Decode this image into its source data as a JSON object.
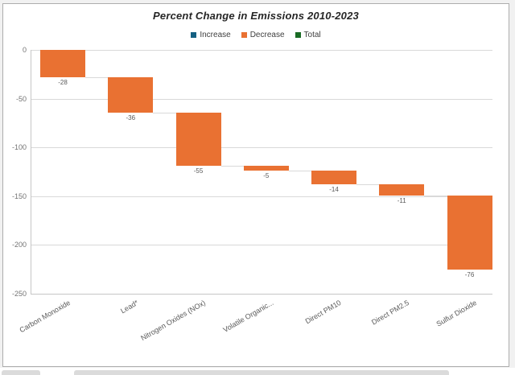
{
  "chart_data": {
    "type": "bar",
    "subtype": "waterfall",
    "title": "Percent Change in Emissions 2010-2023",
    "categories": [
      "Carbon Monoxide",
      "Lead*",
      "Nitrogen Oxides (NOx)",
      "Volatile Organic...",
      "Direct PM10",
      "Direct PM2.5",
      "Sulfur Dioxide"
    ],
    "values": [
      -28,
      -36,
      -55,
      -5,
      -14,
      -11,
      -76
    ],
    "data_labels": [
      "-28",
      "-36",
      "-55",
      "-5",
      "-14",
      "-11",
      "-76"
    ],
    "bar_color": "#E97132",
    "legend": [
      {
        "label": "Increase",
        "color": "#156082"
      },
      {
        "label": "Decrease",
        "color": "#E97132"
      },
      {
        "label": "Total",
        "color": "#196B24"
      }
    ],
    "legend_position": "top",
    "y_tick_labels": [
      "0",
      "-50",
      "-100",
      "-150",
      "-200",
      "-250"
    ],
    "y_ticks": [
      0,
      -50,
      -100,
      -150,
      -200,
      -250
    ],
    "ylim": [
      -250,
      0
    ],
    "grid": true,
    "xlabel": "",
    "ylabel": ""
  },
  "colors": {
    "grid": "#D9D9D9",
    "axis": "#C6C6C6",
    "data_label": "#595959",
    "tick_label": "#737373",
    "category_label": "#595959",
    "title": "#262626",
    "legend_text": "#404040",
    "chart_border": "#ADADAD",
    "chart_background": "#FFFFFF",
    "page_background": "#F1F1F1"
  }
}
